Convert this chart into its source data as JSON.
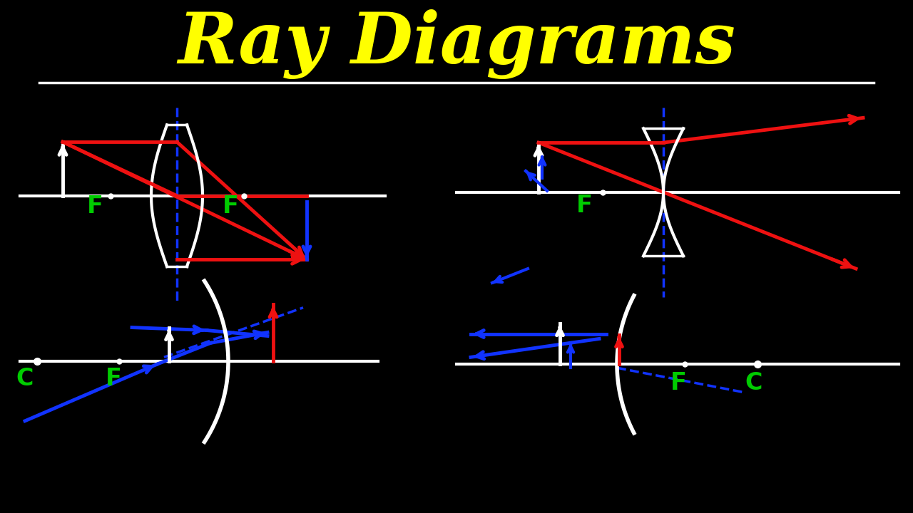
{
  "title": "Ray Diagrams",
  "title_color": "#FFFF00",
  "title_fontsize": 72,
  "bg_color": "#000000",
  "W": "#FFFFFF",
  "R": "#EE1111",
  "B": "#1133FF",
  "G": "#00CC00"
}
